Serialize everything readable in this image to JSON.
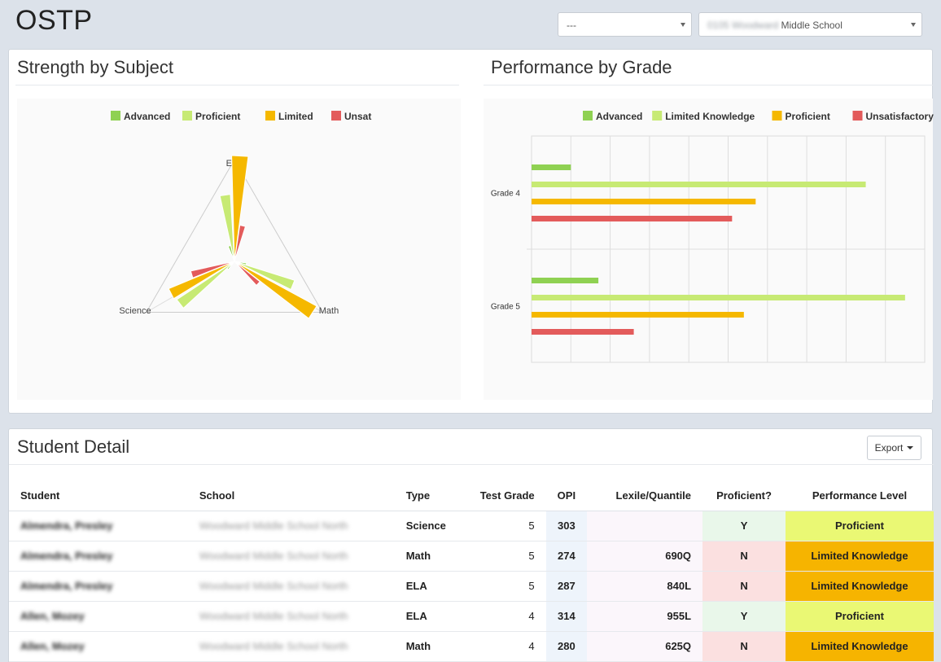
{
  "app": {
    "title": "OSTP"
  },
  "filters": {
    "period": {
      "value": "---"
    },
    "school": {
      "value_prefix": "0105 Woodward",
      "value": "Middle School"
    }
  },
  "strength_panel": {
    "title": "Strength by Subject"
  },
  "grade_panel": {
    "title": "Performance by Grade"
  },
  "detail_panel": {
    "title": "Student Detail",
    "export_label": "Export"
  },
  "colors": {
    "advanced": "#8fd152",
    "proficient_light": "#c7ea74",
    "limited": "#f5b800",
    "unsat": "#e35b5b"
  },
  "chart_data": [
    {
      "type": "radar",
      "legend": [
        "Advanced",
        "Proficient",
        "Limited",
        "Unsat"
      ],
      "legend_colors": [
        "#8fd152",
        "#c7ea74",
        "#f5b800",
        "#e35b5b"
      ],
      "axes": [
        "ELA",
        "Math",
        "Science"
      ],
      "series": [
        {
          "name": "Advanced",
          "values": [
            8,
            6,
            5
          ]
        },
        {
          "name": "Proficient",
          "values": [
            33,
            31,
            34
          ]
        },
        {
          "name": "Limited",
          "values": [
            52,
            46,
            35
          ]
        },
        {
          "name": "Unsat",
          "values": [
            18,
            16,
            22
          ]
        }
      ],
      "rmax": 50
    },
    {
      "type": "bar",
      "orientation": "horizontal",
      "legend": [
        "Advanced",
        "Limited Knowledge",
        "Proficient",
        "Unsatisfactory"
      ],
      "legend_colors": [
        "#8fd152",
        "#c7ea74",
        "#f5b800",
        "#e35b5b"
      ],
      "categories": [
        "Grade 4",
        "Grade 5"
      ],
      "series": [
        {
          "name": "Advanced",
          "values": [
            10,
            17
          ]
        },
        {
          "name": "Limited Knowledge",
          "values": [
            85,
            95
          ]
        },
        {
          "name": "Proficient",
          "values": [
            57,
            54
          ]
        },
        {
          "name": "Unsatisfactory",
          "values": [
            51,
            26
          ]
        }
      ],
      "xlim": [
        0,
        100
      ],
      "grid": true
    }
  ],
  "table": {
    "headers": [
      "Student",
      "School",
      "Type",
      "Test Grade",
      "OPI",
      "Lexile/Quantile",
      "Proficient?",
      "Performance Level"
    ],
    "rows": [
      {
        "student": "Almendra, Presley",
        "school": "Woodward Middle School North",
        "type": "Science",
        "grade": "5",
        "opi": "303",
        "lexile": "",
        "proficient": "Y",
        "level": "Proficient"
      },
      {
        "student": "Almendra, Presley",
        "school": "Woodward Middle School North",
        "type": "Math",
        "grade": "5",
        "opi": "274",
        "lexile": "690Q",
        "proficient": "N",
        "level": "Limited Knowledge"
      },
      {
        "student": "Almendra, Presley",
        "school": "Woodward Middle School North",
        "type": "ELA",
        "grade": "5",
        "opi": "287",
        "lexile": "840L",
        "proficient": "N",
        "level": "Limited Knowledge"
      },
      {
        "student": "Allen, Mozey",
        "school": "Woodward Middle School North",
        "type": "ELA",
        "grade": "4",
        "opi": "314",
        "lexile": "955L",
        "proficient": "Y",
        "level": "Proficient"
      },
      {
        "student": "Allen, Mozey",
        "school": "Woodward Middle School North",
        "type": "Math",
        "grade": "4",
        "opi": "280",
        "lexile": "625Q",
        "proficient": "N",
        "level": "Limited Knowledge"
      }
    ]
  }
}
